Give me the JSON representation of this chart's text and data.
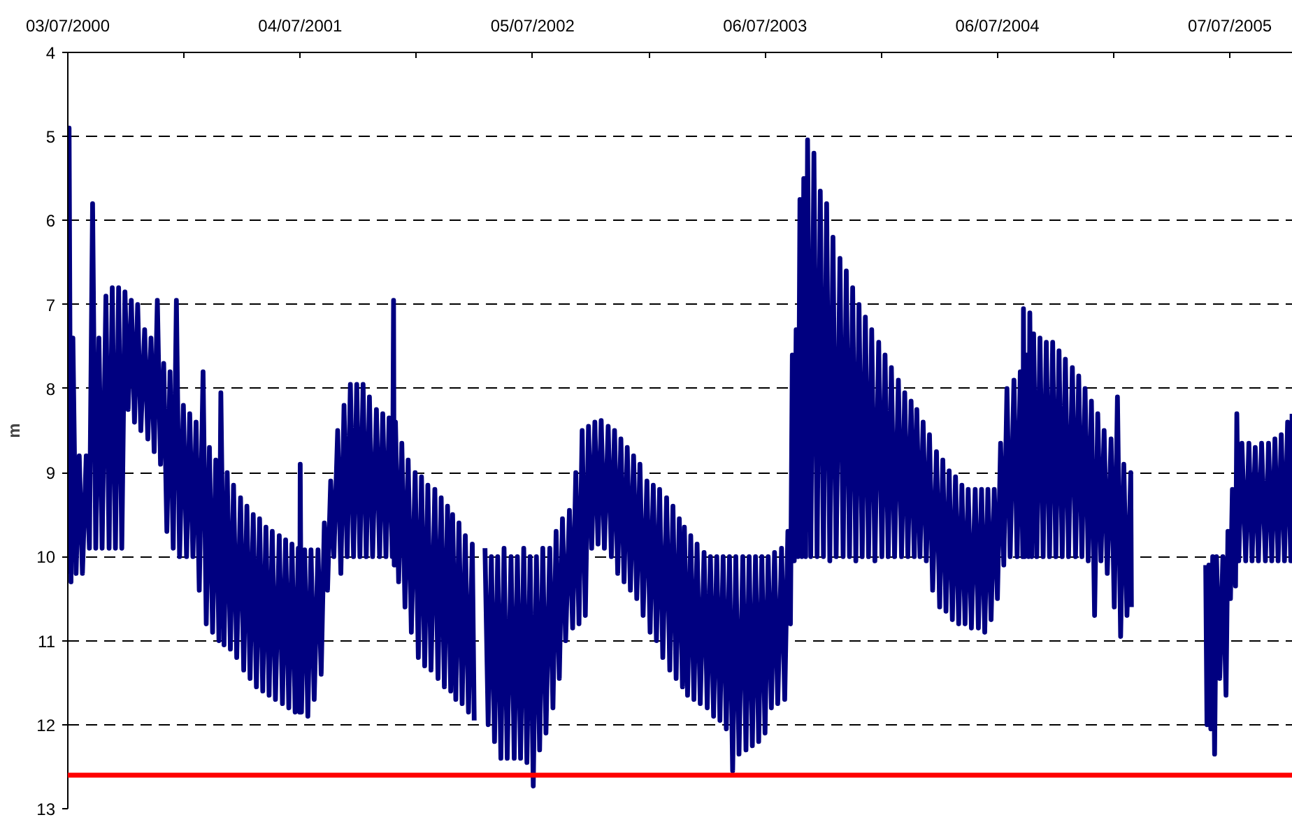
{
  "chart_data": {
    "type": "line",
    "ylabel": "m",
    "x": [
      "2000-07-03",
      "2000-07-05",
      "2000-07-08",
      "2000-07-11",
      "2000-07-16",
      "2000-07-21",
      "2000-07-26",
      "2000-08-01",
      "2000-08-06",
      "2000-08-11",
      "2000-08-16",
      "2000-08-21",
      "2000-08-26",
      "2000-09-01",
      "2000-09-06",
      "2000-09-11",
      "2000-09-16",
      "2000-09-21",
      "2000-09-26",
      "2000-10-01",
      "2000-10-06",
      "2000-10-11",
      "2000-10-16",
      "2000-10-21",
      "2000-10-26",
      "2000-11-01",
      "2000-11-06",
      "2000-11-11",
      "2000-11-16",
      "2000-11-21",
      "2000-11-26",
      "2000-12-01",
      "2000-12-06",
      "2000-12-11",
      "2000-12-16",
      "2000-12-21",
      "2000-12-26",
      "2001-01-01",
      "2001-01-06",
      "2001-01-11",
      "2001-01-16",
      "2001-01-21",
      "2001-01-26",
      "2001-02-01",
      "2001-02-06",
      "2001-02-11",
      "2001-02-16",
      "2001-02-21",
      "2001-02-26",
      "2001-03-01",
      "2001-03-06",
      "2001-03-11",
      "2001-03-16",
      "2001-03-21",
      "2001-03-26",
      "2001-04-01",
      "2001-04-06",
      "2001-04-11",
      "2001-04-16",
      "2001-04-21",
      "2001-04-26",
      "2001-05-01",
      "2001-05-06",
      "2001-05-11",
      "2001-05-16",
      "2001-05-21",
      "2001-05-26",
      "2001-06-01",
      "2001-06-06",
      "2001-06-11",
      "2001-06-16",
      "2001-06-21",
      "2001-06-26",
      "2001-07-01",
      "2001-07-03",
      "2001-07-04",
      "2001-07-06",
      "2001-07-11",
      "2001-07-16",
      "2001-07-21",
      "2001-07-26",
      "2001-08-01",
      "2001-08-06",
      "2001-08-11",
      "2001-08-16",
      "2001-08-21",
      "2001-08-26",
      "2001-09-01",
      "2001-09-06",
      "2001-09-11",
      "2001-09-16",
      "2001-09-21",
      "2001-09-26",
      "2001-10-01",
      "2001-10-06",
      "2001-10-11",
      "2001-10-16",
      "2001-10-21",
      "2001-10-26",
      "2001-11-01",
      "2001-11-06",
      "2001-11-11",
      "2001-11-16",
      "2001-11-21",
      "2001-11-26",
      "2001-11-28",
      "2001-11-29",
      "2001-12-01",
      "2001-12-06",
      "2001-12-11",
      "2001-12-16",
      "2001-12-21",
      "2001-12-26",
      "2002-01-01",
      "2002-01-06",
      "2002-01-11",
      "2002-01-16",
      "2002-01-21",
      "2002-01-26",
      "2002-02-01",
      "2002-02-06",
      "2002-02-11",
      "2002-02-16",
      "2002-02-21",
      "2002-02-26",
      "2002-03-01",
      "2002-03-06",
      "2002-03-11",
      "2002-03-16",
      "2002-03-21",
      "2002-03-26",
      "2002-04-01",
      "2002-04-04",
      "2002-04-12",
      "2002-04-21",
      "2002-04-26",
      "2002-05-01",
      "2002-05-06",
      "2002-05-11",
      "2002-05-16",
      "2002-05-21",
      "2002-05-26",
      "2002-06-01",
      "2002-06-06",
      "2002-06-11",
      "2002-06-16",
      "2002-06-21",
      "2002-06-26",
      "2002-07-01",
      "2002-07-06",
      "2002-07-11",
      "2002-07-16",
      "2002-07-21",
      "2002-07-26",
      "2002-08-01",
      "2002-08-06",
      "2002-08-11",
      "2002-08-16",
      "2002-08-21",
      "2002-08-26",
      "2002-09-01",
      "2002-09-06",
      "2002-09-11",
      "2002-09-16",
      "2002-09-21",
      "2002-09-26",
      "2002-10-01",
      "2002-10-06",
      "2002-10-11",
      "2002-10-16",
      "2002-10-21",
      "2002-10-26",
      "2002-11-01",
      "2002-11-06",
      "2002-11-11",
      "2002-11-16",
      "2002-11-21",
      "2002-11-26",
      "2002-12-01",
      "2002-12-06",
      "2002-12-11",
      "2002-12-16",
      "2002-12-21",
      "2002-12-26",
      "2003-01-01",
      "2003-01-06",
      "2003-01-11",
      "2003-01-16",
      "2003-01-21",
      "2003-01-26",
      "2003-02-01",
      "2003-02-06",
      "2003-02-11",
      "2003-02-16",
      "2003-02-21",
      "2003-02-26",
      "2003-03-01",
      "2003-03-06",
      "2003-03-11",
      "2003-03-16",
      "2003-03-21",
      "2003-03-26",
      "2003-04-01",
      "2003-04-06",
      "2003-04-11",
      "2003-04-16",
      "2003-04-21",
      "2003-04-26",
      "2003-05-01",
      "2003-05-06",
      "2003-05-11",
      "2003-05-16",
      "2003-05-21",
      "2003-05-26",
      "2003-06-01",
      "2003-06-06",
      "2003-06-11",
      "2003-06-16",
      "2003-06-21",
      "2003-06-26",
      "2003-07-01",
      "2003-07-06",
      "2003-07-11",
      "2003-07-16",
      "2003-07-21",
      "2003-07-26",
      "2003-08-01",
      "2003-08-06",
      "2003-08-11",
      "2003-08-15",
      "2003-08-18",
      "2003-08-21",
      "2003-08-24",
      "2003-08-27",
      "2003-08-30",
      "2003-09-02",
      "2003-09-05",
      "2003-09-08",
      "2003-09-11",
      "2003-09-16",
      "2003-09-21",
      "2003-09-26",
      "2003-10-01",
      "2003-10-06",
      "2003-10-11",
      "2003-10-16",
      "2003-10-21",
      "2003-10-26",
      "2003-11-01",
      "2003-11-06",
      "2003-11-11",
      "2003-11-16",
      "2003-11-21",
      "2003-11-26",
      "2003-12-01",
      "2003-12-06",
      "2003-12-11",
      "2003-12-16",
      "2003-12-21",
      "2003-12-26",
      "2004-01-01",
      "2004-01-06",
      "2004-01-11",
      "2004-01-16",
      "2004-01-21",
      "2004-01-26",
      "2004-02-01",
      "2004-02-06",
      "2004-02-11",
      "2004-02-16",
      "2004-02-21",
      "2004-02-26",
      "2004-03-01",
      "2004-03-06",
      "2004-03-11",
      "2004-03-16",
      "2004-03-21",
      "2004-03-26",
      "2004-04-01",
      "2004-04-06",
      "2004-04-11",
      "2004-04-16",
      "2004-04-21",
      "2004-04-26",
      "2004-05-01",
      "2004-05-06",
      "2004-05-11",
      "2004-05-16",
      "2004-05-21",
      "2004-05-26",
      "2004-06-01",
      "2004-06-06",
      "2004-06-11",
      "2004-06-16",
      "2004-06-21",
      "2004-06-26",
      "2004-07-01",
      "2004-07-06",
      "2004-07-11",
      "2004-07-16",
      "2004-07-21",
      "2004-07-26",
      "2004-08-01",
      "2004-08-06",
      "2004-08-11",
      "2004-08-15",
      "2004-08-16",
      "2004-08-18",
      "2004-08-21",
      "2004-08-24",
      "2004-08-26",
      "2004-08-29",
      "2004-09-01",
      "2004-09-06",
      "2004-09-11",
      "2004-09-16",
      "2004-09-21",
      "2004-09-26",
      "2004-10-01",
      "2004-10-06",
      "2004-10-11",
      "2004-10-16",
      "2004-10-21",
      "2004-10-26",
      "2004-11-01",
      "2004-11-06",
      "2004-11-11",
      "2004-11-16",
      "2004-11-21",
      "2004-11-26",
      "2004-12-01",
      "2004-12-06",
      "2004-12-11",
      "2004-12-16",
      "2004-12-21",
      "2004-12-26",
      "2005-01-01",
      "2005-01-06",
      "2005-01-11",
      "2005-01-16",
      "2005-01-21",
      "2005-01-26",
      "2005-02-01",
      "2005-02-02",
      "2005-03-15",
      "2005-05-30",
      "2005-06-01",
      "2005-06-04",
      "2005-06-07",
      "2005-06-10",
      "2005-06-13",
      "2005-06-16",
      "2005-06-21",
      "2005-06-26",
      "2005-07-01",
      "2005-07-04",
      "2005-07-08",
      "2005-07-11",
      "2005-07-16",
      "2005-07-18",
      "2005-07-21",
      "2005-07-26",
      "2005-08-01",
      "2005-08-06",
      "2005-08-11",
      "2005-08-16",
      "2005-08-21",
      "2005-08-26",
      "2005-09-01",
      "2005-09-06",
      "2005-09-11",
      "2005-09-16",
      "2005-09-21",
      "2005-09-26",
      "2005-10-01",
      "2005-10-06",
      "2005-10-11",
      "2005-10-13"
    ],
    "series": [
      {
        "color": "#000080",
        "values": [
          10.2,
          4.9,
          10.3,
          7.4,
          10.2,
          8.8,
          10.2,
          8.8,
          9.9,
          5.8,
          9.9,
          7.4,
          9.9,
          6.9,
          9.9,
          6.8,
          9.9,
          6.8,
          9.9,
          6.85,
          8.25,
          6.95,
          8.4,
          7.0,
          8.5,
          7.3,
          8.6,
          7.4,
          8.75,
          6.95,
          8.9,
          7.7,
          9.7,
          7.8,
          9.9,
          6.95,
          10.0,
          8.2,
          10.0,
          8.3,
          10.0,
          8.4,
          10.4,
          7.8,
          10.8,
          8.7,
          10.9,
          8.85,
          11.0,
          8.05,
          11.05,
          9.0,
          11.1,
          9.15,
          11.2,
          9.3,
          11.35,
          9.4,
          11.45,
          9.5,
          11.55,
          9.55,
          11.6,
          9.65,
          11.65,
          9.7,
          11.7,
          9.75,
          11.75,
          9.8,
          11.8,
          9.85,
          11.85,
          9.9,
          11.85,
          8.9,
          11.85,
          9.92,
          11.9,
          9.92,
          11.7,
          9.92,
          11.4,
          9.6,
          10.4,
          9.1,
          10.0,
          8.5,
          10.2,
          8.2,
          10.0,
          7.95,
          10.0,
          7.95,
          10.0,
          7.95,
          10.0,
          8.1,
          10.0,
          8.25,
          10.0,
          8.3,
          10.0,
          8.35,
          10.0,
          6.95,
          10.1,
          8.4,
          10.3,
          8.65,
          10.6,
          8.85,
          10.9,
          9.0,
          11.2,
          9.05,
          11.3,
          9.15,
          11.35,
          9.2,
          11.45,
          9.3,
          11.55,
          9.4,
          11.6,
          9.5,
          11.7,
          9.6,
          11.75,
          9.75,
          11.85,
          9.85,
          11.95,
          null,
          9.9,
          12.0,
          10.0,
          12.2,
          10.0,
          12.4,
          9.9,
          12.4,
          10.0,
          12.4,
          10.0,
          12.4,
          9.9,
          12.45,
          10.0,
          12.73,
          10.0,
          12.3,
          9.9,
          12.1,
          9.9,
          11.8,
          9.7,
          11.45,
          9.55,
          11.0,
          9.45,
          10.85,
          9.0,
          10.8,
          8.5,
          10.7,
          8.45,
          9.9,
          8.4,
          9.85,
          8.38,
          9.9,
          8.45,
          10.0,
          8.5,
          10.2,
          8.6,
          10.3,
          8.7,
          10.4,
          8.8,
          10.5,
          8.9,
          10.7,
          9.1,
          10.9,
          9.15,
          11.0,
          9.2,
          11.2,
          9.3,
          11.35,
          9.4,
          11.45,
          9.55,
          11.55,
          9.65,
          11.65,
          9.75,
          11.7,
          9.85,
          11.75,
          9.95,
          11.8,
          10.0,
          11.9,
          10.0,
          11.95,
          10.0,
          12.05,
          10.0,
          12.55,
          10.0,
          12.35,
          10.0,
          12.3,
          10.0,
          12.25,
          10.0,
          12.2,
          10.0,
          12.1,
          10.0,
          11.8,
          9.95,
          11.75,
          9.9,
          11.7,
          9.7,
          10.8,
          7.6,
          10.05,
          7.3,
          10.0,
          5.75,
          10.0,
          5.5,
          10.0,
          5.04,
          10.0,
          5.2,
          10.0,
          5.65,
          10.0,
          5.8,
          10.05,
          6.2,
          10.0,
          6.45,
          10.0,
          6.6,
          10.0,
          6.8,
          10.05,
          7.0,
          10.0,
          7.15,
          10.0,
          7.3,
          10.05,
          7.45,
          10.0,
          7.6,
          10.0,
          7.75,
          10.0,
          7.9,
          10.0,
          8.05,
          10.0,
          8.15,
          10.0,
          8.25,
          10.0,
          8.4,
          10.05,
          8.55,
          10.4,
          8.75,
          10.6,
          8.85,
          10.65,
          8.98,
          10.75,
          9.05,
          10.8,
          9.15,
          10.8,
          9.2,
          10.85,
          9.2,
          10.85,
          9.2,
          10.9,
          9.2,
          10.75,
          9.2,
          10.5,
          8.65,
          10.1,
          8.0,
          10.0,
          7.9,
          10.0,
          7.8,
          10.0,
          7.05,
          10.0,
          7.6,
          10.0,
          7.1,
          10.0,
          7.35,
          10.0,
          7.4,
          10.0,
          7.45,
          10.0,
          7.45,
          10.0,
          7.55,
          10.0,
          7.65,
          10.0,
          7.75,
          10.0,
          7.85,
          10.0,
          8.0,
          10.05,
          8.15,
          10.7,
          8.3,
          10.05,
          8.5,
          10.2,
          8.6,
          10.6,
          8.1,
          10.95,
          8.9,
          10.7,
          9.0,
          10.6,
          null,
          10.1,
          12.0,
          10.1,
          12.05,
          10.0,
          12.35,
          10.0,
          11.45,
          10.0,
          11.65,
          9.7,
          10.5,
          9.2,
          10.35,
          8.3,
          10.05,
          8.65,
          10.05,
          8.65,
          10.05,
          8.7,
          10.05,
          8.65,
          10.05,
          8.65,
          10.05,
          8.6,
          10.05,
          8.55,
          10.05,
          8.4,
          10.05,
          8.3
        ]
      }
    ],
    "xlim": [
      "2000-07-03",
      "2005-10-14"
    ],
    "xticks": [
      {
        "value": "2000-07-03",
        "label": "03/07/2000"
      },
      {
        "value": "2001-01-02",
        "label": null
      },
      {
        "value": "2001-07-04",
        "label": "04/07/2001"
      },
      {
        "value": "2002-01-03",
        "label": null
      },
      {
        "value": "2002-07-05",
        "label": "05/07/2002"
      },
      {
        "value": "2003-01-04",
        "label": null
      },
      {
        "value": "2003-07-06",
        "label": "06/07/2003"
      },
      {
        "value": "2004-01-05",
        "label": null
      },
      {
        "value": "2004-07-06",
        "label": "06/07/2004"
      },
      {
        "value": "2005-01-05",
        "label": null
      },
      {
        "value": "2005-07-07",
        "label": "07/07/2005"
      }
    ],
    "ylim": [
      13,
      4
    ],
    "yticks": [
      4,
      5,
      6,
      7,
      8,
      9,
      10,
      11,
      12,
      13
    ],
    "grid": "y",
    "line_style": "solid",
    "ref_lines": [
      {
        "axis": "y",
        "value": 12.6,
        "color": "#ff0000"
      }
    ]
  }
}
